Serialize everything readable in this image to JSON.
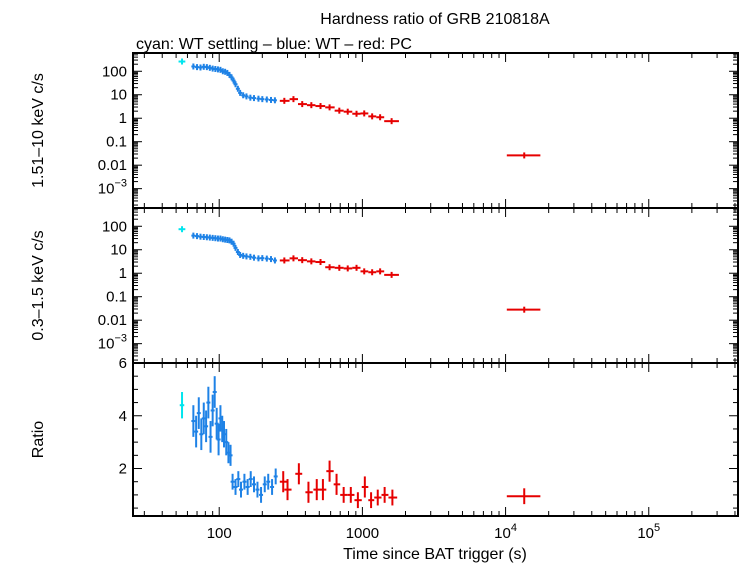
{
  "chart_data": {
    "type": "scatter",
    "title": "Hardness ratio of GRB 210818A",
    "subtitle": "cyan: WT settling – blue: WT – red: PC",
    "xlabel": "Time since BAT trigger (s)",
    "x_scale": "log",
    "xlim": [
      25,
      420000
    ],
    "x_ticks": [
      {
        "value": 100,
        "label": "100"
      },
      {
        "value": 1000,
        "label": "1000"
      },
      {
        "value": 10000,
        "label": "10",
        "sup": "4"
      },
      {
        "value": 100000,
        "label": "10",
        "sup": "5"
      }
    ],
    "colors": {
      "wt_settling": "#00e5ee",
      "wt": "#1e82e6",
      "pc": "#e60000"
    },
    "panels": [
      {
        "id": "hard",
        "ylabel": "1.51–10 keV c/s",
        "y_scale": "log",
        "ylim": [
          0.00015,
          600
        ],
        "y_ticks": [
          {
            "value": 100,
            "label": "100"
          },
          {
            "value": 10,
            "label": "10"
          },
          {
            "value": 1,
            "label": "1"
          },
          {
            "value": 0.1,
            "label": "0.1"
          },
          {
            "value": 0.01,
            "label": "0.01"
          },
          {
            "value": 0.001,
            "label": "10",
            "sup": "−3"
          }
        ],
        "series": [
          {
            "group": "wt_settling",
            "points": [
              {
                "x": 55,
                "y": 260,
                "xl": 52,
                "xh": 58
              }
            ]
          },
          {
            "group": "wt",
            "points": [
              {
                "x": 66,
                "y": 160
              },
              {
                "x": 70,
                "y": 150
              },
              {
                "x": 74,
                "y": 145
              },
              {
                "x": 78,
                "y": 155
              },
              {
                "x": 82,
                "y": 150
              },
              {
                "x": 86,
                "y": 140
              },
              {
                "x": 90,
                "y": 130
              },
              {
                "x": 94,
                "y": 125
              },
              {
                "x": 98,
                "y": 120
              },
              {
                "x": 102,
                "y": 115
              },
              {
                "x": 106,
                "y": 100
              },
              {
                "x": 110,
                "y": 95
              },
              {
                "x": 114,
                "y": 85
              },
              {
                "x": 118,
                "y": 70
              },
              {
                "x": 122,
                "y": 55
              },
              {
                "x": 126,
                "y": 40
              },
              {
                "x": 130,
                "y": 28
              },
              {
                "x": 135,
                "y": 18
              },
              {
                "x": 140,
                "y": 12
              },
              {
                "x": 147,
                "y": 9.5
              },
              {
                "x": 155,
                "y": 8.5
              },
              {
                "x": 165,
                "y": 7.5
              },
              {
                "x": 175,
                "y": 7.2
              },
              {
                "x": 188,
                "y": 6.8
              },
              {
                "x": 200,
                "y": 6.5
              },
              {
                "x": 215,
                "y": 6.3
              },
              {
                "x": 230,
                "y": 6.0
              },
              {
                "x": 245,
                "y": 5.8
              }
            ]
          },
          {
            "group": "pc",
            "points": [
              {
                "x": 285,
                "y": 5.5,
                "xl": 265,
                "xh": 310
              },
              {
                "x": 330,
                "y": 6.5,
                "xl": 310,
                "xh": 355
              },
              {
                "x": 380,
                "y": 4.0,
                "xl": 355,
                "xh": 410
              },
              {
                "x": 440,
                "y": 3.6,
                "xl": 410,
                "xh": 470
              },
              {
                "x": 510,
                "y": 3.3,
                "xl": 470,
                "xh": 550
              },
              {
                "x": 590,
                "y": 2.9,
                "xl": 550,
                "xh": 640
              },
              {
                "x": 690,
                "y": 2.1,
                "xl": 640,
                "xh": 740
              },
              {
                "x": 790,
                "y": 1.9,
                "xl": 740,
                "xh": 850
              },
              {
                "x": 910,
                "y": 1.55,
                "xl": 850,
                "xh": 970
              },
              {
                "x": 1030,
                "y": 1.6,
                "xl": 970,
                "xh": 1100
              },
              {
                "x": 1170,
                "y": 1.2,
                "xl": 1100,
                "xh": 1250
              },
              {
                "x": 1330,
                "y": 1.1,
                "xl": 1250,
                "xh": 1420
              },
              {
                "x": 1600,
                "y": 0.75,
                "xl": 1420,
                "xh": 1800
              },
              {
                "x": 13500,
                "y": 0.026,
                "xl": 10200,
                "xh": 17500
              }
            ]
          }
        ]
      },
      {
        "id": "soft",
        "ylabel": "0.3–1.5 keV c/s",
        "y_scale": "log",
        "ylim": [
          0.00015,
          600
        ],
        "y_ticks": [
          {
            "value": 100,
            "label": "100"
          },
          {
            "value": 10,
            "label": "10"
          },
          {
            "value": 1,
            "label": "1"
          },
          {
            "value": 0.1,
            "label": "0.1"
          },
          {
            "value": 0.01,
            "label": "0.01"
          },
          {
            "value": 0.001,
            "label": "10",
            "sup": "−3"
          }
        ],
        "series": [
          {
            "group": "wt_settling",
            "points": [
              {
                "x": 55,
                "y": 75,
                "xl": 52,
                "xh": 58
              }
            ]
          },
          {
            "group": "wt",
            "points": [
              {
                "x": 66,
                "y": 40
              },
              {
                "x": 70,
                "y": 38
              },
              {
                "x": 74,
                "y": 36
              },
              {
                "x": 78,
                "y": 35
              },
              {
                "x": 82,
                "y": 34
              },
              {
                "x": 86,
                "y": 33
              },
              {
                "x": 90,
                "y": 32
              },
              {
                "x": 94,
                "y": 31
              },
              {
                "x": 98,
                "y": 30
              },
              {
                "x": 102,
                "y": 30
              },
              {
                "x": 106,
                "y": 28
              },
              {
                "x": 110,
                "y": 27
              },
              {
                "x": 114,
                "y": 26
              },
              {
                "x": 118,
                "y": 25
              },
              {
                "x": 122,
                "y": 22
              },
              {
                "x": 126,
                "y": 18
              },
              {
                "x": 130,
                "y": 12
              },
              {
                "x": 135,
                "y": 8
              },
              {
                "x": 140,
                "y": 6
              },
              {
                "x": 147,
                "y": 5.5
              },
              {
                "x": 155,
                "y": 5.2
              },
              {
                "x": 165,
                "y": 5.0
              },
              {
                "x": 175,
                "y": 4.6
              },
              {
                "x": 188,
                "y": 4.3
              },
              {
                "x": 200,
                "y": 4.4
              },
              {
                "x": 215,
                "y": 4.2
              },
              {
                "x": 230,
                "y": 4.0
              },
              {
                "x": 245,
                "y": 3.5
              }
            ]
          },
          {
            "group": "pc",
            "points": [
              {
                "x": 285,
                "y": 3.5,
                "xl": 265,
                "xh": 310
              },
              {
                "x": 330,
                "y": 4.3,
                "xl": 310,
                "xh": 355
              },
              {
                "x": 380,
                "y": 3.6,
                "xl": 355,
                "xh": 410
              },
              {
                "x": 440,
                "y": 3.2,
                "xl": 410,
                "xh": 470
              },
              {
                "x": 510,
                "y": 3.0,
                "xl": 470,
                "xh": 550
              },
              {
                "x": 590,
                "y": 1.8,
                "xl": 550,
                "xh": 640
              },
              {
                "x": 690,
                "y": 1.7,
                "xl": 640,
                "xh": 740
              },
              {
                "x": 790,
                "y": 1.6,
                "xl": 740,
                "xh": 850
              },
              {
                "x": 910,
                "y": 1.7,
                "xl": 850,
                "xh": 970
              },
              {
                "x": 1030,
                "y": 1.2,
                "xl": 970,
                "xh": 1100
              },
              {
                "x": 1170,
                "y": 1.1,
                "xl": 1100,
                "xh": 1250
              },
              {
                "x": 1330,
                "y": 1.2,
                "xl": 1250,
                "xh": 1420
              },
              {
                "x": 1600,
                "y": 0.85,
                "xl": 1420,
                "xh": 1800
              },
              {
                "x": 13500,
                "y": 0.028,
                "xl": 10200,
                "xh": 17500
              }
            ]
          }
        ]
      },
      {
        "id": "ratio",
        "ylabel": "Ratio",
        "y_scale": "linear",
        "ylim": [
          0.2,
          6
        ],
        "y_ticks": [
          {
            "value": 2,
            "label": "2"
          },
          {
            "value": 4,
            "label": "4"
          },
          {
            "value": 6,
            "label": "6"
          }
        ],
        "series": [
          {
            "group": "wt_settling",
            "points": [
              {
                "x": 55,
                "y": 4.4,
                "yerr": 0.5,
                "xl": 53,
                "xh": 57
              }
            ]
          },
          {
            "group": "wt",
            "points": [
              {
                "x": 66,
                "y": 3.8,
                "yerr": 0.6
              },
              {
                "x": 69,
                "y": 3.4,
                "yerr": 0.6
              },
              {
                "x": 72,
                "y": 4.1,
                "yerr": 0.6
              },
              {
                "x": 75,
                "y": 3.3,
                "yerr": 0.6
              },
              {
                "x": 78,
                "y": 3.9,
                "yerr": 0.6
              },
              {
                "x": 81,
                "y": 3.6,
                "yerr": 0.6
              },
              {
                "x": 84,
                "y": 4.5,
                "yerr": 0.6
              },
              {
                "x": 87,
                "y": 3.2,
                "yerr": 0.6
              },
              {
                "x": 90,
                "y": 4.2,
                "yerr": 0.6
              },
              {
                "x": 93,
                "y": 4.9,
                "yerr": 0.6
              },
              {
                "x": 96,
                "y": 3.7,
                "yerr": 0.6
              },
              {
                "x": 99,
                "y": 3.1,
                "yerr": 0.6
              },
              {
                "x": 102,
                "y": 3.9,
                "yerr": 0.5
              },
              {
                "x": 105,
                "y": 3.5,
                "yerr": 0.5
              },
              {
                "x": 108,
                "y": 3.3,
                "yerr": 0.5
              },
              {
                "x": 112,
                "y": 3.0,
                "yerr": 0.5
              },
              {
                "x": 116,
                "y": 2.6,
                "yerr": 0.4
              },
              {
                "x": 120,
                "y": 2.5,
                "yerr": 0.4
              },
              {
                "x": 124,
                "y": 1.5,
                "yerr": 0.3
              },
              {
                "x": 130,
                "y": 1.3,
                "yerr": 0.3
              },
              {
                "x": 136,
                "y": 1.6,
                "yerr": 0.3
              },
              {
                "x": 142,
                "y": 1.2,
                "yerr": 0.3
              },
              {
                "x": 150,
                "y": 1.5,
                "yerr": 0.3
              },
              {
                "x": 158,
                "y": 1.3,
                "yerr": 0.3
              },
              {
                "x": 166,
                "y": 1.6,
                "yerr": 0.3
              },
              {
                "x": 175,
                "y": 1.4,
                "yerr": 0.3
              },
              {
                "x": 185,
                "y": 1.2,
                "yerr": 0.3
              },
              {
                "x": 196,
                "y": 1.0,
                "yerr": 0.3
              },
              {
                "x": 208,
                "y": 1.4,
                "yerr": 0.3
              },
              {
                "x": 220,
                "y": 1.5,
                "yerr": 0.3
              },
              {
                "x": 234,
                "y": 1.3,
                "yerr": 0.3
              },
              {
                "x": 248,
                "y": 1.7,
                "yerr": 0.3
              }
            ]
          },
          {
            "group": "pc",
            "points": [
              {
                "x": 280,
                "y": 1.5,
                "yerr": 0.4,
                "xl": 265,
                "xh": 300
              },
              {
                "x": 300,
                "y": 1.2,
                "yerr": 0.4,
                "xl": 285,
                "xh": 320
              },
              {
                "x": 360,
                "y": 1.8,
                "yerr": 0.4,
                "xl": 340,
                "xh": 380
              },
              {
                "x": 420,
                "y": 1.1,
                "yerr": 0.4,
                "xl": 400,
                "xh": 450
              },
              {
                "x": 480,
                "y": 1.2,
                "yerr": 0.4,
                "xl": 455,
                "xh": 510
              },
              {
                "x": 530,
                "y": 1.2,
                "yerr": 0.4,
                "xl": 505,
                "xh": 560
              },
              {
                "x": 590,
                "y": 1.9,
                "yerr": 0.4,
                "xl": 560,
                "xh": 630
              },
              {
                "x": 660,
                "y": 1.4,
                "yerr": 0.4,
                "xl": 630,
                "xh": 700
              },
              {
                "x": 740,
                "y": 1.0,
                "yerr": 0.3,
                "xl": 700,
                "xh": 790
              },
              {
                "x": 830,
                "y": 1.0,
                "yerr": 0.3,
                "xl": 790,
                "xh": 880
              },
              {
                "x": 930,
                "y": 0.8,
                "yerr": 0.3,
                "xl": 880,
                "xh": 990
              },
              {
                "x": 1040,
                "y": 1.3,
                "yerr": 0.4,
                "xl": 990,
                "xh": 1100
              },
              {
                "x": 1150,
                "y": 0.8,
                "yerr": 0.3,
                "xl": 1100,
                "xh": 1210
              },
              {
                "x": 1280,
                "y": 0.9,
                "yerr": 0.3,
                "xl": 1210,
                "xh": 1360
              },
              {
                "x": 1430,
                "y": 1.0,
                "yerr": 0.3,
                "xl": 1360,
                "xh": 1520
              },
              {
                "x": 1620,
                "y": 0.9,
                "yerr": 0.3,
                "xl": 1520,
                "xh": 1750
              },
              {
                "x": 13500,
                "y": 0.95,
                "yerr": 0.3,
                "xl": 10200,
                "xh": 17500
              }
            ]
          }
        ]
      }
    ]
  }
}
